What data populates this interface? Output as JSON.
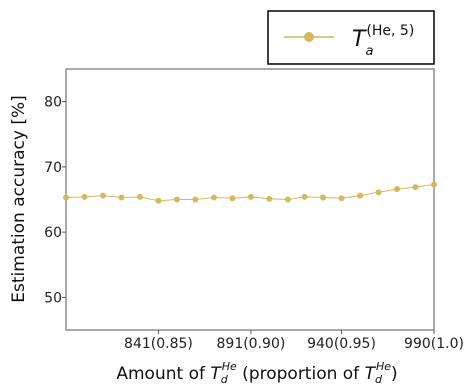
{
  "chart_data": {
    "type": "line",
    "title": "",
    "ylabel": "Estimation accuracy [%]",
    "xlabel": {
      "prefix": "Amount of ",
      "sym1_base": "T",
      "sym1_sub": "d",
      "sym1_sup": "He",
      "middle": " (proportion of ",
      "sym2_base": "T",
      "sym2_sub": "d",
      "sym2_sup": "He",
      "suffix": ")"
    },
    "ylim": [
      45,
      85
    ],
    "yticks": [
      50,
      60,
      70,
      80
    ],
    "xlim": [
      791,
      990
    ],
    "xticks": [
      {
        "value": 841,
        "label": "841(0.85)"
      },
      {
        "value": 891,
        "label": "891(0.90)"
      },
      {
        "value": 940,
        "label": "940(0.95)"
      },
      {
        "value": 990,
        "label": "990(1.0)"
      }
    ],
    "grid": false,
    "legend_position": "above-right",
    "series": [
      {
        "name": {
          "base": "T",
          "sub": "a",
          "sup": "(He, 5)"
        },
        "color": "#d4b95e",
        "x": [
          791,
          801,
          811,
          821,
          831,
          841,
          851,
          861,
          871,
          881,
          891,
          901,
          911,
          920,
          930,
          940,
          950,
          960,
          970,
          980,
          990
        ],
        "y": [
          65.3,
          65.4,
          65.6,
          65.3,
          65.4,
          64.8,
          65.0,
          65.0,
          65.3,
          65.2,
          65.4,
          65.1,
          65.0,
          65.4,
          65.3,
          65.2,
          65.6,
          66.1,
          66.6,
          66.9,
          67.3
        ]
      }
    ]
  }
}
